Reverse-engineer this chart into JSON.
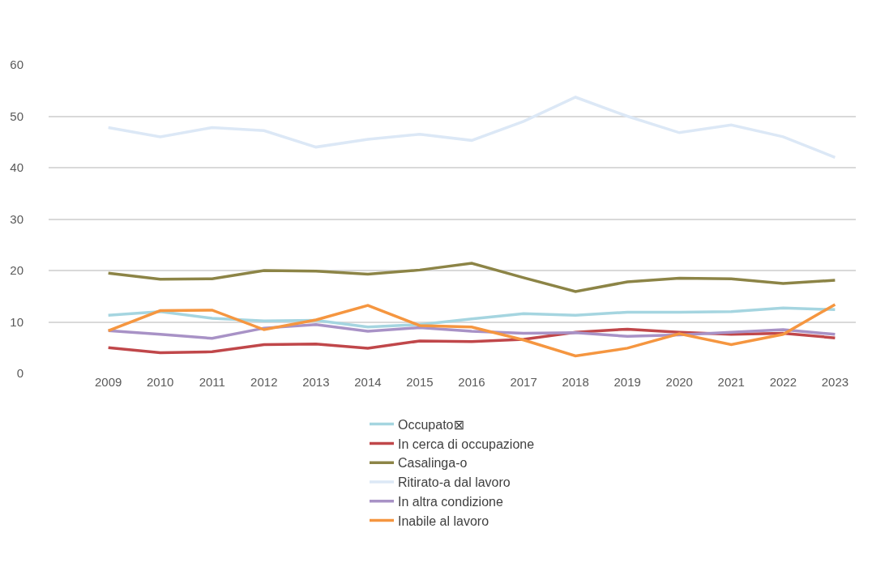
{
  "chart_data": {
    "type": "line",
    "categories": [
      "2009",
      "2010",
      "2011",
      "2012",
      "2013",
      "2014",
      "2015",
      "2016",
      "2017",
      "2018",
      "2019",
      "2020",
      "2021",
      "2022",
      "2023"
    ],
    "series": [
      {
        "name": "Occupato⊠",
        "color": "#a5d5e0",
        "values": [
          11.3,
          12.0,
          10.7,
          10.2,
          10.3,
          9.0,
          9.5,
          10.6,
          11.6,
          11.3,
          11.9,
          11.9,
          12.0,
          12.7,
          12.4
        ]
      },
      {
        "name": "In cerca di occupazione",
        "color": "#c0474a",
        "values": [
          5.0,
          4.0,
          4.2,
          5.6,
          5.7,
          4.9,
          6.3,
          6.2,
          6.6,
          8.0,
          8.6,
          8.0,
          7.6,
          7.8,
          6.9
        ]
      },
      {
        "name": "Casalinga-o",
        "color": "#8c8446",
        "values": [
          19.5,
          18.3,
          18.4,
          20.0,
          19.9,
          19.3,
          20.1,
          21.4,
          18.6,
          15.9,
          17.8,
          18.5,
          18.4,
          17.5,
          18.1
        ]
      },
      {
        "name": "Ritirato-a dal lavoro",
        "color": "#dce8f6",
        "values": [
          47.8,
          46.0,
          47.8,
          47.2,
          44.0,
          45.5,
          46.5,
          45.3,
          49.0,
          53.7,
          50.0,
          46.8,
          48.3,
          46.0,
          42.0
        ]
      },
      {
        "name": "In altra condizione",
        "color": "#a892c6",
        "values": [
          8.3,
          7.6,
          6.8,
          8.8,
          9.5,
          8.2,
          8.9,
          8.2,
          7.8,
          7.9,
          7.2,
          7.5,
          8.0,
          8.5,
          7.6
        ]
      },
      {
        "name": "Inabile al lavoro",
        "color": "#f59640",
        "values": [
          8.3,
          12.2,
          12.3,
          8.5,
          10.4,
          13.2,
          9.3,
          9.0,
          6.5,
          3.4,
          4.9,
          7.7,
          5.6,
          7.6,
          13.4
        ]
      }
    ],
    "ylim": [
      0,
      60
    ],
    "yticks": [
      0,
      10,
      20,
      30,
      40,
      50,
      60
    ],
    "grid": "y",
    "legend": "bottom",
    "marker": "none",
    "line_style": "solid"
  }
}
